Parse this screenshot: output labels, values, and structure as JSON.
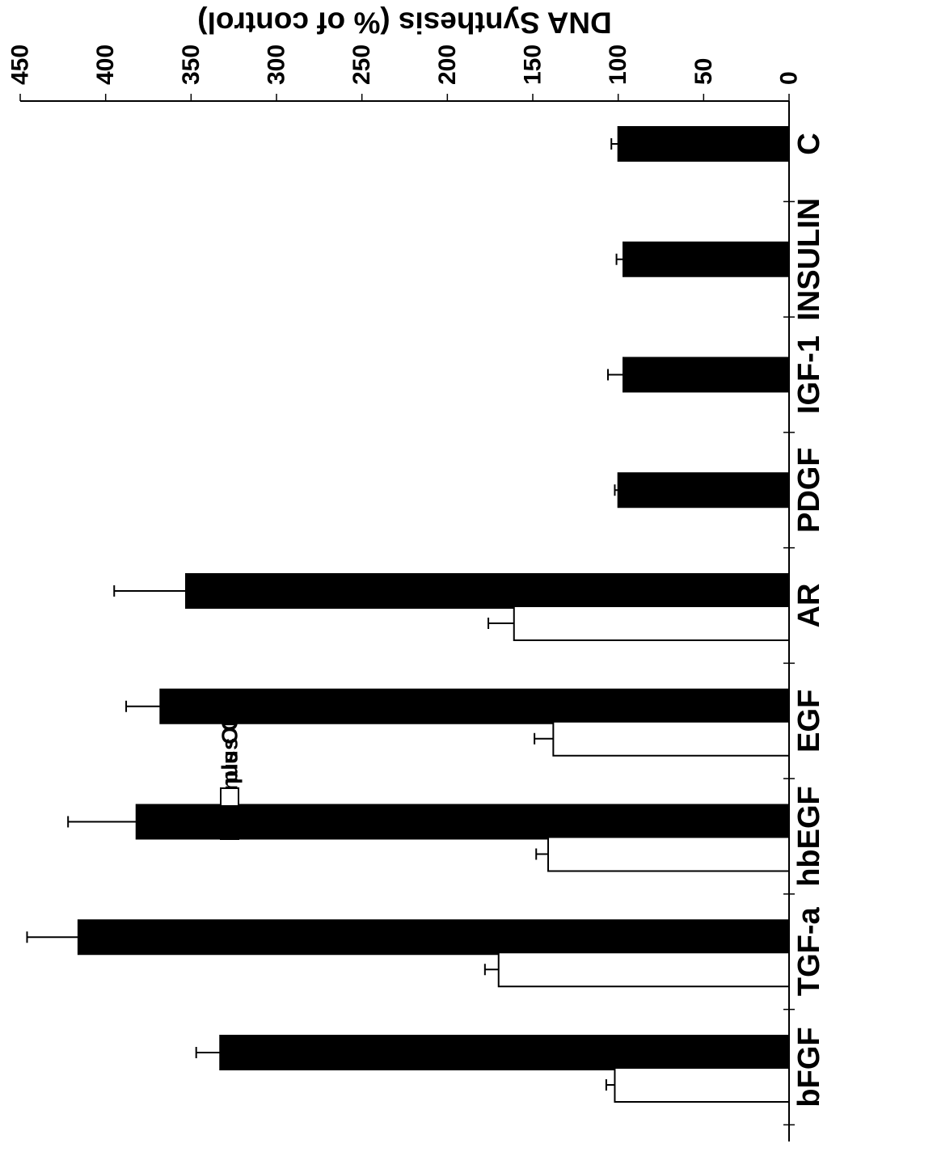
{
  "chart_data": {
    "type": "bar",
    "orientation": "horizontal",
    "rotated": "180deg",
    "categories": [
      "C",
      "INSULIN",
      "IGF-1",
      "PDGF",
      "AR",
      "EGF",
      "hbEGF",
      "TGF-a",
      "bFGF"
    ],
    "series": [
      {
        "name": "minus OM",
        "color": "#000000",
        "values": [
          100,
          97,
          97,
          100,
          353,
          368,
          382,
          416,
          333
        ],
        "errors": [
          4,
          4,
          9,
          2,
          42,
          20,
          40,
          30,
          14
        ]
      },
      {
        "name": "plus OM",
        "color": "#ffffff",
        "values": [
          null,
          null,
          null,
          null,
          161,
          138,
          141,
          170,
          102
        ],
        "errors": [
          null,
          null,
          null,
          null,
          15,
          11,
          7,
          8,
          5
        ]
      }
    ],
    "ylabel": "DNA Synthesis (% of control)",
    "xlabel": "",
    "ylim": [
      0,
      450
    ],
    "yticks": [
      0,
      50,
      100,
      150,
      200,
      250,
      300,
      350,
      400,
      450
    ],
    "grid": false,
    "legend_placement": "inside, near INSULIN/IGF-1 categories"
  }
}
